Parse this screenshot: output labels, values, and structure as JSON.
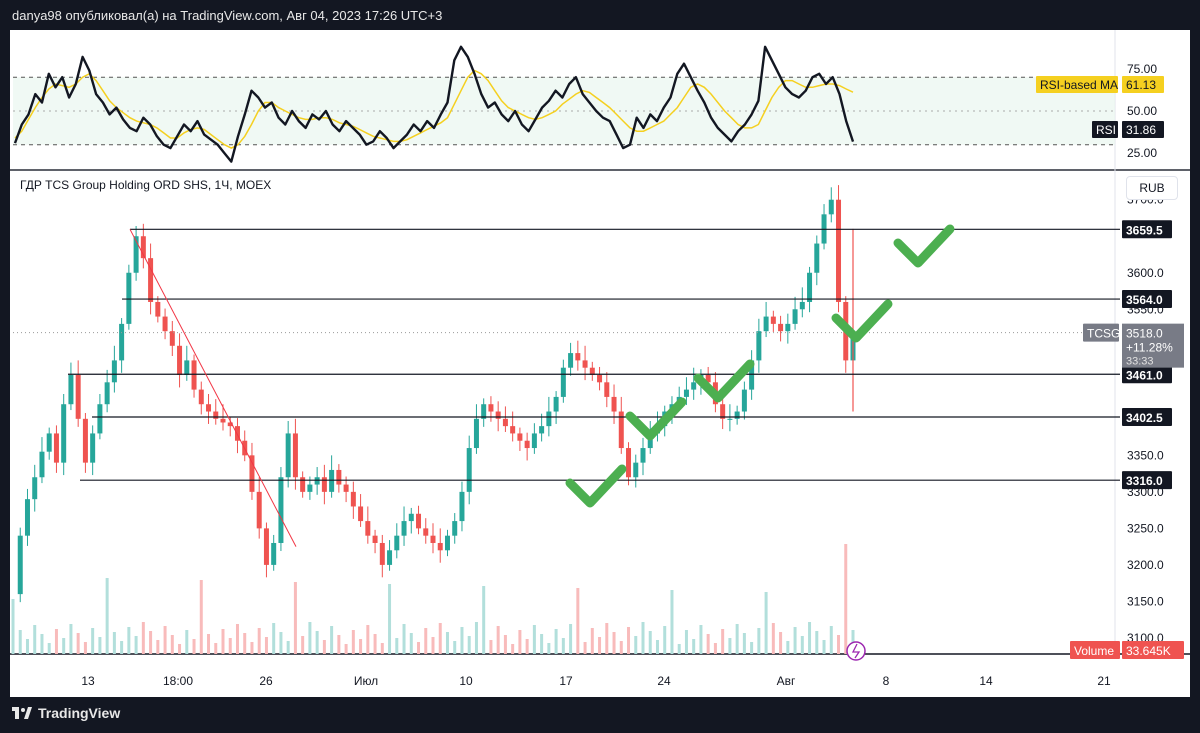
{
  "header": {
    "publish_text": "danya98 опубликовал(а) на TradingView.com, Авг 04, 2023 17:26 UTC+3"
  },
  "footer": {
    "logo_text": "TradingView"
  },
  "rsi_pane": {
    "axis_labels": [
      "75.00",
      "50.00",
      "25.00"
    ],
    "rsi_ma_label": "RSI-based MA",
    "rsi_ma_value": "61.13",
    "rsi_label": "RSI",
    "rsi_value": "31.86"
  },
  "main_pane": {
    "title": "ГДР TCS Group Holding ORD SHS, 1Ч, MOEX",
    "currency_button": "RUB",
    "price_axis": [
      "3700.0",
      "3600.0",
      "3550.0",
      "3350.0",
      "3300.0",
      "3250.0",
      "3200.0",
      "3150.0",
      "3100.0"
    ],
    "levels": [
      "3659.5",
      "3564.0",
      "3461.0",
      "3402.5",
      "3316.0"
    ],
    "ticker_badge": {
      "symbol": "TCSG",
      "price": "3518.0",
      "change": "+11.28%",
      "countdown": "33:33"
    },
    "volume_badge": {
      "label": "Volume",
      "value": "33.645K"
    },
    "time_axis": [
      "13",
      "18:00",
      "26",
      "Июл",
      "10",
      "17",
      "24",
      "Авг",
      "8",
      "14",
      "21"
    ]
  },
  "colors": {
    "up": "#26a69a",
    "down": "#ef5350",
    "rsi_line": "#131722",
    "rsi_ma": "#f5d020",
    "check": "#4caf50",
    "trendline": "#f23645"
  },
  "chart_data": [
    {
      "type": "line",
      "title": "RSI",
      "ylim": [
        18,
        95
      ],
      "y_ticks": [
        75,
        50,
        25
      ],
      "series": [
        {
          "name": "RSI",
          "values": [
            31,
            42,
            48,
            60,
            55,
            72,
            64,
            70,
            58,
            66,
            82,
            74,
            60,
            55,
            48,
            52,
            45,
            40,
            38,
            46,
            42,
            35,
            30,
            28,
            35,
            42,
            38,
            44,
            36,
            33,
            30,
            25,
            20,
            35,
            48,
            62,
            58,
            52,
            55,
            46,
            42,
            50,
            44,
            40,
            48,
            45,
            50,
            42,
            38,
            44,
            40,
            36,
            30,
            32,
            38,
            34,
            28,
            32,
            36,
            42,
            38,
            44,
            40,
            48,
            55,
            80,
            88,
            82,
            72,
            60,
            52,
            55,
            48,
            44,
            50,
            42,
            38,
            45,
            52,
            56,
            62,
            58,
            66,
            70,
            60,
            55,
            50,
            46,
            44,
            36,
            28,
            30,
            46,
            40,
            48,
            44,
            52,
            58,
            72,
            78,
            70,
            62,
            55,
            46,
            40,
            36,
            32,
            38,
            42,
            48,
            56,
            88,
            80,
            72,
            64,
            60,
            58,
            62,
            70,
            72,
            66,
            70,
            60,
            44,
            31.86
          ]
        },
        {
          "name": "RSI-based MA",
          "values": [
            34,
            38,
            45,
            52,
            58,
            63,
            66,
            65,
            64,
            66,
            70,
            72,
            68,
            62,
            56,
            52,
            49,
            46,
            44,
            43,
            42,
            40,
            37,
            34,
            34,
            37,
            39,
            40,
            39,
            36,
            33,
            30,
            28,
            30,
            35,
            42,
            50,
            55,
            55,
            52,
            50,
            48,
            46,
            45,
            45,
            46,
            46,
            45,
            43,
            42,
            41,
            39,
            37,
            35,
            34,
            33,
            32,
            32,
            33,
            35,
            37,
            39,
            41,
            43,
            46,
            54,
            62,
            70,
            74,
            72,
            68,
            62,
            56,
            52,
            50,
            48,
            46,
            45,
            46,
            48,
            50,
            54,
            57,
            60,
            62,
            61,
            58,
            55,
            52,
            48,
            44,
            40,
            38,
            38,
            40,
            42,
            44,
            48,
            52,
            58,
            64,
            66,
            64,
            60,
            55,
            50,
            46,
            42,
            40,
            40,
            42,
            50,
            58,
            64,
            68,
            68,
            66,
            64,
            64,
            65,
            66,
            66,
            65,
            63,
            61.13
          ]
        }
      ],
      "levels": [
        70,
        30
      ]
    },
    {
      "type": "line",
      "title": "ГДР TCS Group Holding ORD SHS, 1Ч, MOEX",
      "ylabel": "RUB",
      "ylim": [
        3078,
        3727
      ],
      "y_ticks": [
        3700,
        3600,
        3550,
        3350,
        3300,
        3250,
        3200,
        3150,
        3100
      ],
      "x_tick_labels": [
        "13",
        "18:00",
        "26",
        "Июл",
        "10",
        "17",
        "24",
        "Авг",
        "8",
        "14",
        "21"
      ],
      "series": [
        {
          "name": "TCSG",
          "values": [
            3160,
            3240,
            3290,
            3320,
            3355,
            3380,
            3340,
            3420,
            3460,
            3400,
            3340,
            3380,
            3420,
            3450,
            3480,
            3530,
            3600,
            3650,
            3620,
            3560,
            3540,
            3520,
            3500,
            3460,
            3480,
            3440,
            3420,
            3410,
            3400,
            3395,
            3390,
            3370,
            3350,
            3300,
            3250,
            3200,
            3230,
            3320,
            3380,
            3320,
            3300,
            3310,
            3320,
            3300,
            3330,
            3310,
            3300,
            3280,
            3260,
            3240,
            3230,
            3200,
            3220,
            3240,
            3260,
            3270,
            3250,
            3240,
            3230,
            3220,
            3240,
            3260,
            3300,
            3360,
            3400,
            3420,
            3410,
            3400,
            3390,
            3380,
            3370,
            3360,
            3380,
            3390,
            3410,
            3430,
            3470,
            3490,
            3480,
            3470,
            3460,
            3450,
            3430,
            3410,
            3360,
            3320,
            3340,
            3360,
            3380,
            3390,
            3410,
            3420,
            3430,
            3440,
            3450,
            3460,
            3450,
            3420,
            3400,
            3400,
            3410,
            3440,
            3480,
            3520,
            3540,
            3530,
            3520,
            3530,
            3550,
            3560,
            3600,
            3640,
            3680,
            3700,
            3560,
            3480,
            3518
          ]
        }
      ],
      "volume": {
        "name": "Volume",
        "last": "33.645K"
      },
      "horizontal_levels": [
        3659.5,
        3564.0,
        3461.0,
        3402.5,
        3316.0
      ],
      "last_price": 3518.0,
      "change_percent": "+11.28%"
    }
  ]
}
